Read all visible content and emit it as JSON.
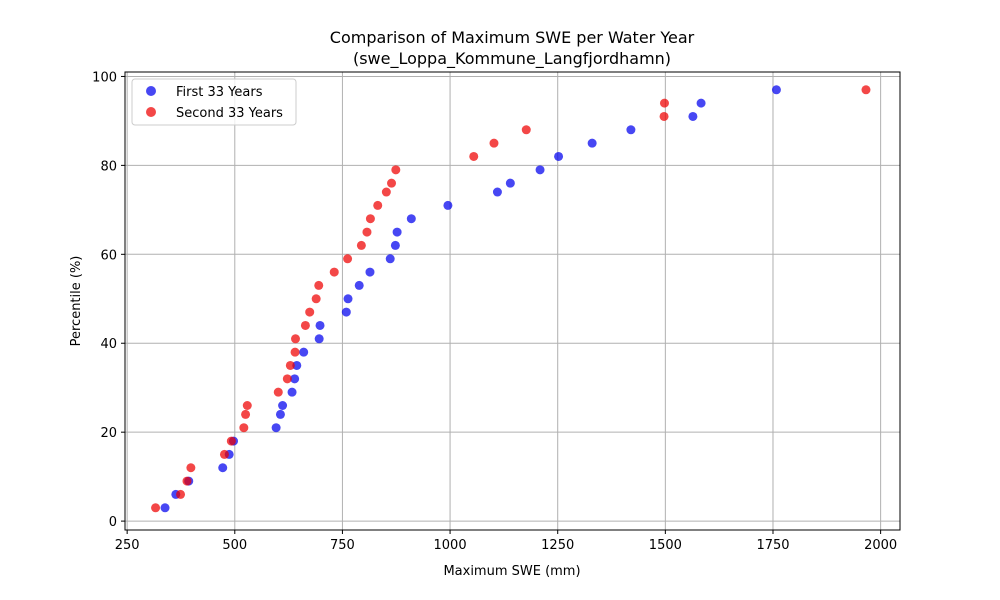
{
  "chart_data": {
    "type": "scatter",
    "title": "Comparison of Maximum SWE per Water Year",
    "subtitle": "(swe_Loppa_Kommune_Langfjordhamn)",
    "xlabel": "Maximum SWE (mm)",
    "ylabel": "Percentile (%)",
    "xlim": [
      245,
      2045
    ],
    "ylim": [
      -2,
      101
    ],
    "xticks": [
      250,
      500,
      750,
      1000,
      1250,
      1500,
      1750,
      2000
    ],
    "xtick_labels": [
      "250",
      "500",
      "750",
      "1000",
      "1250",
      "1500",
      "1750",
      "2000"
    ],
    "yticks": [
      0,
      20,
      40,
      60,
      80,
      100
    ],
    "ytick_labels": [
      "0",
      "20",
      "40",
      "60",
      "80",
      "100"
    ],
    "grid": true,
    "legend_position": "top-left",
    "series": [
      {
        "name": "First 33 Years",
        "color": "#0000ee",
        "points": [
          [
            338,
            3
          ],
          [
            363,
            6
          ],
          [
            393,
            9
          ],
          [
            472,
            12
          ],
          [
            487,
            15
          ],
          [
            497,
            18
          ],
          [
            596,
            21
          ],
          [
            606,
            24
          ],
          [
            611,
            26
          ],
          [
            633,
            29
          ],
          [
            639,
            32
          ],
          [
            644,
            35
          ],
          [
            660,
            38
          ],
          [
            696,
            41
          ],
          [
            698,
            44
          ],
          [
            759,
            47
          ],
          [
            763,
            50
          ],
          [
            789,
            53
          ],
          [
            814,
            56
          ],
          [
            861,
            59
          ],
          [
            873,
            62
          ],
          [
            877,
            65
          ],
          [
            910,
            68
          ],
          [
            995,
            71
          ],
          [
            1110,
            74
          ],
          [
            1140,
            76
          ],
          [
            1209,
            79
          ],
          [
            1252,
            82
          ],
          [
            1330,
            85
          ],
          [
            1420,
            88
          ],
          [
            1564,
            91
          ],
          [
            1583,
            94
          ],
          [
            1758,
            97
          ]
        ]
      },
      {
        "name": "Second 33 Years",
        "color": "#ee0000",
        "points": [
          [
            316,
            3
          ],
          [
            374,
            6
          ],
          [
            389,
            9
          ],
          [
            398,
            12
          ],
          [
            476,
            15
          ],
          [
            492,
            18
          ],
          [
            521,
            21
          ],
          [
            525,
            24
          ],
          [
            529,
            26
          ],
          [
            601,
            29
          ],
          [
            622,
            32
          ],
          [
            629,
            35
          ],
          [
            640,
            38
          ],
          [
            641,
            41
          ],
          [
            664,
            44
          ],
          [
            674,
            47
          ],
          [
            689,
            50
          ],
          [
            695,
            53
          ],
          [
            731,
            56
          ],
          [
            762,
            59
          ],
          [
            794,
            62
          ],
          [
            807,
            65
          ],
          [
            815,
            68
          ],
          [
            832,
            71
          ],
          [
            852,
            74
          ],
          [
            864,
            76
          ],
          [
            874,
            79
          ],
          [
            1055,
            82
          ],
          [
            1102,
            85
          ],
          [
            1177,
            88
          ],
          [
            1497,
            91
          ],
          [
            1498,
            94
          ],
          [
            1966,
            97
          ]
        ]
      }
    ]
  }
}
